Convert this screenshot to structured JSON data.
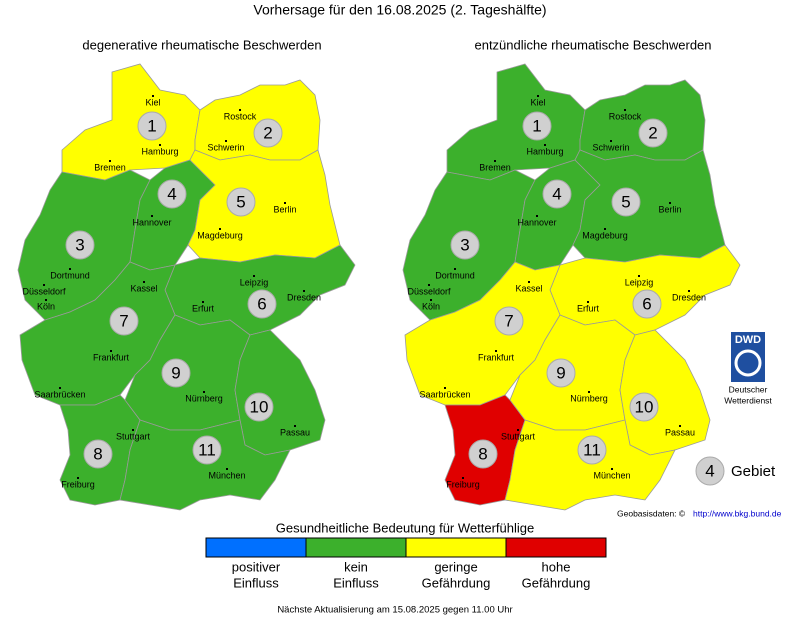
{
  "title": "Vorhersage für den 16.08.2025 (2. Tageshälfte)",
  "regions": [
    {
      "label": "1"
    },
    {
      "label": "2"
    },
    {
      "label": "3"
    },
    {
      "label": "4"
    },
    {
      "label": "5"
    },
    {
      "label": "6"
    },
    {
      "label": "7"
    },
    {
      "label": "8"
    },
    {
      "label": "9"
    },
    {
      "label": "10"
    },
    {
      "label": "11"
    }
  ],
  "cities": [
    {
      "name": "Kiel"
    },
    {
      "name": "Rostock"
    },
    {
      "name": "Hamburg"
    },
    {
      "name": "Schwerin"
    },
    {
      "name": "Bremen"
    },
    {
      "name": "Hannover"
    },
    {
      "name": "Berlin"
    },
    {
      "name": "Magdeburg"
    },
    {
      "name": "Dortmund"
    },
    {
      "name": "Düsseldorf"
    },
    {
      "name": "Köln"
    },
    {
      "name": "Kassel"
    },
    {
      "name": "Leipzig"
    },
    {
      "name": "Dresden"
    },
    {
      "name": "Erfurt"
    },
    {
      "name": "Frankfurt"
    },
    {
      "name": "Saarbrücken"
    },
    {
      "name": "Nürnberg"
    },
    {
      "name": "Passau"
    },
    {
      "name": "Stuttgart"
    },
    {
      "name": "München"
    },
    {
      "name": "Freiburg"
    }
  ],
  "maps": [
    {
      "title": "degenerative rheumatische Beschwerden",
      "region_colors": [
        "#ffff00",
        "#ffff00",
        "#3cb02c",
        "#3cb02c",
        "#ffff00",
        "#3cb02c",
        "#3cb02c",
        "#3cb02c",
        "#3cb02c",
        "#3cb02c",
        "#3cb02c"
      ]
    },
    {
      "title": "entzündliche rheumatische Beschwerden",
      "region_colors": [
        "#3cb02c",
        "#3cb02c",
        "#3cb02c",
        "#3cb02c",
        "#3cb02c",
        "#ffff00",
        "#ffff00",
        "#e00000",
        "#ffff00",
        "#ffff00",
        "#ffff00"
      ]
    }
  ],
  "logo": {
    "abbr": "DWD",
    "lines": [
      "Deutscher",
      "Wetterdienst"
    ]
  },
  "key": {
    "number": "4",
    "label": "Gebiet"
  },
  "source": {
    "text": "Geobasisdaten: ©",
    "link": "http://www.bkg.bund.de"
  },
  "legend": {
    "title": "Gesundheitliche Bedeutung für Wetterfühlige",
    "items": [
      {
        "color": "#0070ff",
        "lines": [
          "positiver",
          "Einfluss"
        ]
      },
      {
        "color": "#3cb02c",
        "lines": [
          "kein",
          "Einfluss"
        ]
      },
      {
        "color": "#ffff00",
        "lines": [
          "geringe",
          "Gefährdung"
        ]
      },
      {
        "color": "#e00000",
        "lines": [
          "hohe",
          "Gefährdung"
        ]
      }
    ]
  },
  "footer": "Nächste Aktualisierung am 15.08.2025 gegen 11.00 Uhr"
}
